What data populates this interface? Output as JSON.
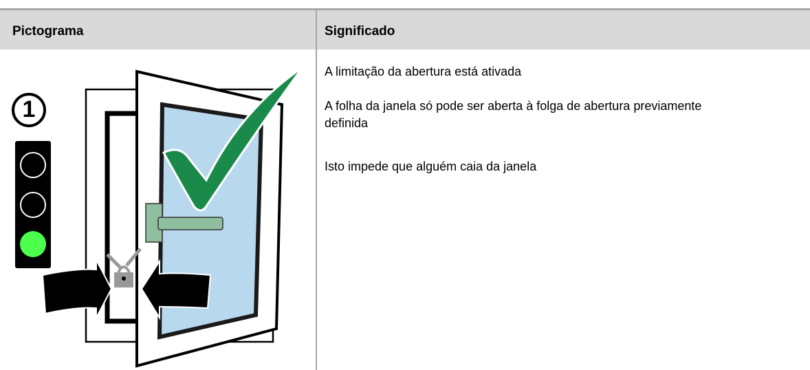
{
  "table": {
    "header": [
      "Pictograma",
      "Significado"
    ],
    "rows": [
      {
        "pictogram_label": "1",
        "meaning": [
          "A limitação da abertura está ativada",
          "A folha da janela só pode ser aberta à folga de abertura previamente definida",
          "Isto impede que alguém caia da janela"
        ]
      }
    ]
  }
}
